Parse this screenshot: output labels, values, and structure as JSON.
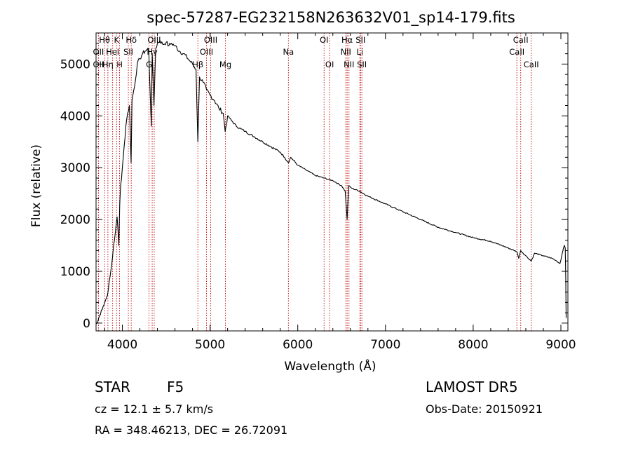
{
  "chart_data": {
    "type": "line",
    "title": "spec-57287-EG232158N263632V01_sp14-179.fits",
    "xlabel": "Wavelength (Å)",
    "ylabel": "Flux (relative)",
    "xlim": [
      3700,
      9080
    ],
    "ylim": [
      -150,
      5600
    ],
    "xticks": [
      4000,
      5000,
      6000,
      7000,
      8000,
      9000
    ],
    "yticks": [
      0,
      1000,
      2000,
      3000,
      4000,
      5000
    ],
    "grid": false,
    "series": [
      {
        "x": [
          3700,
          3720,
          3740,
          3760,
          3780,
          3800,
          3820,
          3840,
          3860,
          3880,
          3900,
          3920,
          3940,
          3960,
          3970,
          3980,
          4000,
          4020,
          4040,
          4060,
          4080,
          4100,
          4110,
          4130,
          4150,
          4170,
          4200,
          4230,
          4260,
          4300,
          4330,
          4340,
          4360,
          4380,
          4400,
          4430,
          4460,
          4500,
          4530,
          4560,
          4600,
          4650,
          4700,
          4750,
          4800,
          4840,
          4861,
          4880,
          4920,
          4960,
          5000,
          5050,
          5100,
          5150,
          5172,
          5200,
          5250,
          5300,
          5350,
          5400,
          5500,
          5600,
          5700,
          5800,
          5850,
          5893,
          5920,
          6000,
          6100,
          6200,
          6300,
          6400,
          6500,
          6540,
          6563,
          6580,
          6620,
          6700,
          6800,
          7000,
          7200,
          7400,
          7600,
          7800,
          8000,
          8200,
          8400,
          8498,
          8520,
          8542,
          8600,
          8662,
          8700,
          8800,
          8900,
          8950,
          8990,
          9010,
          9030,
          9040,
          9050,
          9055,
          9060
        ],
        "y": [
          -20,
          30,
          150,
          250,
          320,
          400,
          500,
          650,
          900,
          1150,
          1500,
          1750,
          2050,
          1500,
          2300,
          2650,
          3000,
          3400,
          3800,
          4050,
          4200,
          3100,
          4300,
          4500,
          4700,
          5000,
          5100,
          5200,
          5250,
          5300,
          3800,
          5200,
          4200,
          5300,
          5400,
          5450,
          5380,
          5420,
          5350,
          5400,
          5350,
          5250,
          5200,
          5100,
          5000,
          4900,
          3500,
          4750,
          4650,
          4500,
          4400,
          4300,
          4150,
          4050,
          3700,
          4000,
          3900,
          3800,
          3750,
          3700,
          3600,
          3500,
          3400,
          3300,
          3200,
          3100,
          3200,
          3050,
          2950,
          2850,
          2800,
          2750,
          2650,
          2550,
          2000,
          2650,
          2600,
          2550,
          2450,
          2300,
          2150,
          2000,
          1850,
          1750,
          1650,
          1580,
          1450,
          1380,
          1250,
          1400,
          1300,
          1200,
          1350,
          1300,
          1250,
          1200,
          1150,
          1300,
          1450,
          1500,
          1450,
          900,
          100
        ]
      }
    ],
    "line_labels": [
      {
        "name": "Hθ",
        "x": 3797,
        "row": 0
      },
      {
        "name": "OII",
        "x": 3727,
        "row": 1
      },
      {
        "name": "OII",
        "x": 3727,
        "row": 2
      },
      {
        "name": "Hη",
        "x": 3835,
        "row": 2
      },
      {
        "name": "K",
        "x": 3934,
        "row": 0
      },
      {
        "name": "HeI",
        "x": 3889,
        "row": 1
      },
      {
        "name": "H",
        "x": 3968,
        "row": 2
      },
      {
        "name": "Hδ",
        "x": 4101,
        "row": 0
      },
      {
        "name": "SII",
        "x": 4068,
        "row": 1
      },
      {
        "name": "OIII",
        "x": 4363,
        "row": 0
      },
      {
        "name": "Hγ",
        "x": 4340,
        "row": 1
      },
      {
        "name": "G",
        "x": 4304,
        "row": 2
      },
      {
        "name": "OIII",
        "x": 5007,
        "row": 0
      },
      {
        "name": "OIII",
        "x": 4959,
        "row": 1
      },
      {
        "name": "Hβ",
        "x": 4861,
        "row": 2
      },
      {
        "name": "Mg",
        "x": 5175,
        "row": 2
      },
      {
        "name": "Na",
        "x": 5893,
        "row": 1
      },
      {
        "name": "OI",
        "x": 6300,
        "row": 0
      },
      {
        "name": "OI",
        "x": 6363,
        "row": 2
      },
      {
        "name": "Hα",
        "x": 6563,
        "row": 0
      },
      {
        "name": "SII",
        "x": 6716,
        "row": 0
      },
      {
        "name": "NII",
        "x": 6548,
        "row": 1
      },
      {
        "name": "Li",
        "x": 6708,
        "row": 1
      },
      {
        "name": "NII",
        "x": 6584,
        "row": 2
      },
      {
        "name": "SII",
        "x": 6731,
        "row": 2
      },
      {
        "name": "CaII",
        "x": 8542,
        "row": 0
      },
      {
        "name": "CaII",
        "x": 8498,
        "row": 1
      },
      {
        "name": "CaII",
        "x": 8662,
        "row": 2
      }
    ]
  },
  "footer": {
    "classification": "STAR",
    "subclass": "F5",
    "survey": "LAMOST DR5",
    "redshift": "cz = 12.1 ± 5.7 km/s",
    "obs_date": "Obs-Date: 20150921",
    "coords": "RA = 348.46213, DEC =  26.72091"
  },
  "colors": {
    "spectrum": "#000000",
    "line_markers": "#c00000"
  }
}
